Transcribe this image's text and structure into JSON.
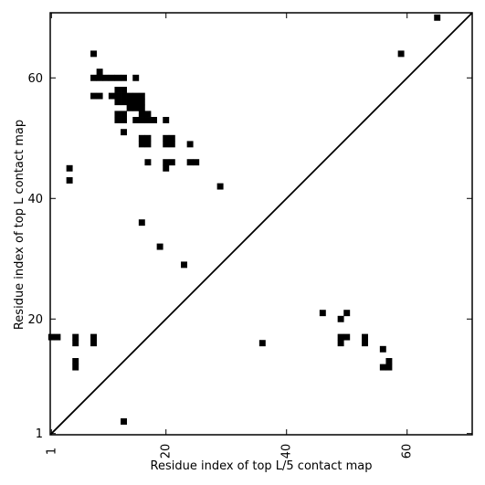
{
  "chart_data": {
    "type": "scatter",
    "title": "",
    "xlabel": "Residue index of top L/5 contact map",
    "ylabel": "Residue index of top L contact map",
    "xlim": [
      0.8,
      70.8
    ],
    "ylim": [
      0.8,
      70.8
    ],
    "xticks": [
      {
        "value": 1,
        "label": "1"
      },
      {
        "value": 20,
        "label": "20"
      },
      {
        "value": 40,
        "label": "40"
      },
      {
        "value": 60,
        "label": "60"
      }
    ],
    "yticks": [
      {
        "value": 1,
        "label": "1"
      },
      {
        "value": 20,
        "label": "20"
      },
      {
        "value": 40,
        "label": "40"
      },
      {
        "value": 60,
        "label": "60"
      }
    ],
    "grid": false,
    "diagonal": [
      [
        1,
        1
      ],
      [
        70.8,
        70.8
      ]
    ],
    "marker_color": "#000000",
    "series": [
      {
        "region": "upper",
        "points": [
          [
            65,
            70
          ],
          [
            59,
            64
          ],
          [
            8,
            64
          ],
          [
            9,
            61
          ],
          [
            8,
            60
          ],
          [
            9,
            60
          ],
          [
            10,
            60
          ],
          [
            11,
            60
          ],
          [
            12,
            60
          ],
          [
            13,
            60
          ],
          [
            15,
            60
          ],
          [
            8,
            57
          ],
          [
            9,
            57
          ],
          [
            11,
            57
          ],
          [
            12,
            58
          ],
          [
            13,
            58
          ],
          [
            12,
            57
          ],
          [
            13,
            57
          ],
          [
            14,
            57
          ],
          [
            15,
            57
          ],
          [
            16,
            57
          ],
          [
            12,
            56
          ],
          [
            13,
            56
          ],
          [
            14,
            56
          ],
          [
            15,
            56
          ],
          [
            16,
            56
          ],
          [
            14,
            55
          ],
          [
            15,
            55
          ],
          [
            16,
            55
          ],
          [
            16,
            54
          ],
          [
            17,
            54
          ],
          [
            12,
            54
          ],
          [
            13,
            54
          ],
          [
            12,
            53
          ],
          [
            13,
            53
          ],
          [
            15,
            53
          ],
          [
            16,
            53
          ],
          [
            17,
            53
          ],
          [
            18,
            53
          ],
          [
            20,
            53
          ],
          [
            13,
            51
          ],
          [
            16,
            50
          ],
          [
            17,
            50
          ],
          [
            16,
            49
          ],
          [
            17,
            49
          ],
          [
            20,
            50
          ],
          [
            21,
            50
          ],
          [
            20,
            49
          ],
          [
            21,
            49
          ],
          [
            24,
            49
          ],
          [
            17,
            46
          ],
          [
            20,
            46
          ],
          [
            21,
            46
          ],
          [
            24,
            46
          ],
          [
            25,
            46
          ],
          [
            20,
            45
          ],
          [
            4,
            45
          ],
          [
            4,
            43
          ],
          [
            29,
            42
          ],
          [
            16,
            36
          ],
          [
            19,
            32
          ],
          [
            23,
            29
          ]
        ]
      },
      {
        "region": "lower",
        "points": [
          [
            1,
            17
          ],
          [
            2,
            17
          ],
          [
            5,
            17
          ],
          [
            8,
            17
          ],
          [
            5,
            16
          ],
          [
            8,
            16
          ],
          [
            5,
            13
          ],
          [
            5,
            12
          ],
          [
            13,
            3
          ],
          [
            36,
            16
          ],
          [
            46,
            21
          ],
          [
            50,
            21
          ],
          [
            49,
            20
          ],
          [
            49,
            17
          ],
          [
            50,
            17
          ],
          [
            49,
            16
          ],
          [
            53,
            17
          ],
          [
            53,
            16
          ],
          [
            56,
            15
          ],
          [
            57,
            13
          ],
          [
            56,
            12
          ],
          [
            57,
            12
          ]
        ]
      }
    ]
  }
}
